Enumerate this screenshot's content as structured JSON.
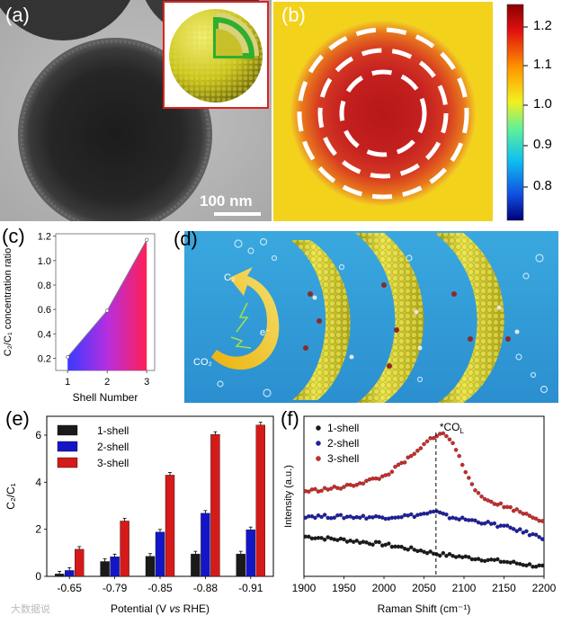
{
  "figure": {
    "panel_labels": {
      "a": "(a)",
      "b": "(b)",
      "c": "(c)",
      "d": "(d)",
      "e": "(e)",
      "f": "(f)"
    }
  },
  "panel_a": {
    "scale_bar_label": "100 nm"
  },
  "panel_b": {
    "colorbar_ticks": [
      "1.2",
      "1.1",
      "1.0",
      "0.9",
      "0.8"
    ]
  },
  "panel_d": {
    "labels": {
      "c2": "C₂",
      "co2": "CO₂",
      "electron": "e⁻"
    }
  },
  "watermark": "大数据说",
  "chart_data": [
    {
      "panel": "c",
      "type": "line",
      "title": "",
      "xlabel": "Shell Number",
      "ylabel": "C₂/C₁ concentration ratio",
      "x": [
        1,
        2,
        3
      ],
      "values": [
        0.21,
        0.59,
        1.17
      ],
      "xticks": [
        "1",
        "2",
        "3"
      ],
      "yticks": [
        "0.2",
        "0.4",
        "0.6",
        "0.8",
        "1.0",
        "1.2"
      ],
      "xlim": [
        0.7,
        3.2
      ],
      "ylim": [
        0.1,
        1.22
      ]
    },
    {
      "panel": "e",
      "type": "bar",
      "title": "",
      "xlabel": "Potential (V vs RHE)",
      "xlabel_parts": [
        "Potential (V ",
        "vs",
        " RHE)"
      ],
      "ylabel": "C₂/C₁",
      "categories": [
        "-0.65",
        "-0.79",
        "-0.85",
        "-0.88",
        "-0.91"
      ],
      "series": [
        {
          "name": "1-shell",
          "color": "#1a1a1a",
          "values": [
            0.1,
            0.63,
            0.85,
            0.95,
            0.95
          ]
        },
        {
          "name": "2-shell",
          "color": "#1515c8",
          "values": [
            0.25,
            0.83,
            1.88,
            2.68,
            1.98
          ]
        },
        {
          "name": "3-shell",
          "color": "#d51a1a",
          "values": [
            1.15,
            2.35,
            4.3,
            6.03,
            6.43
          ]
        }
      ],
      "yticks": [
        "0",
        "2",
        "4",
        "6"
      ],
      "ylim": [
        0,
        6.8
      ],
      "legend": "top-left"
    },
    {
      "panel": "f",
      "type": "scatter",
      "title": "",
      "xlabel": "Raman Shift (cm⁻¹)",
      "ylabel": "Intensity (a.u.)",
      "annotation": "*CO",
      "annotation_sub": "L",
      "annotation_x": 2065,
      "xticks": [
        "1900",
        "1950",
        "2000",
        "2050",
        "2100",
        "2150",
        "2200"
      ],
      "xlim": [
        1900,
        2200
      ],
      "series": [
        {
          "name": "1-shell",
          "color": "#1a1a1a",
          "peak_x": 2065,
          "profile": [
            [
              1900,
              1.62
            ],
            [
              1950,
              1.48
            ],
            [
              2000,
              1.3
            ],
            [
              2050,
              1.02
            ],
            [
              2065,
              0.92
            ],
            [
              2100,
              0.78
            ],
            [
              2150,
              0.6
            ],
            [
              2200,
              0.38
            ]
          ]
        },
        {
          "name": "2-shell",
          "color": "#1e1ea8",
          "peak_x": 2065,
          "profile": [
            [
              1900,
              2.45
            ],
            [
              1950,
              2.42
            ],
            [
              2000,
              2.4
            ],
            [
              2040,
              2.48
            ],
            [
              2065,
              2.62
            ],
            [
              2080,
              2.42
            ],
            [
              2120,
              2.22
            ],
            [
              2160,
              1.95
            ],
            [
              2200,
              1.55
            ]
          ]
        },
        {
          "name": "3-shell",
          "color": "#d02a2a",
          "peak_x": 2072,
          "profile": [
            [
              1900,
              3.45
            ],
            [
              1950,
              3.62
            ],
            [
              2000,
              4.05
            ],
            [
              2040,
              5.0
            ],
            [
              2060,
              5.65
            ],
            [
              2072,
              5.82
            ],
            [
              2085,
              5.5
            ],
            [
              2100,
              4.4
            ],
            [
              2120,
              3.2
            ],
            [
              2160,
              2.75
            ],
            [
              2200,
              2.25
            ]
          ]
        }
      ],
      "ylim": [
        0,
        6.5
      ],
      "legend": "top-left"
    }
  ]
}
